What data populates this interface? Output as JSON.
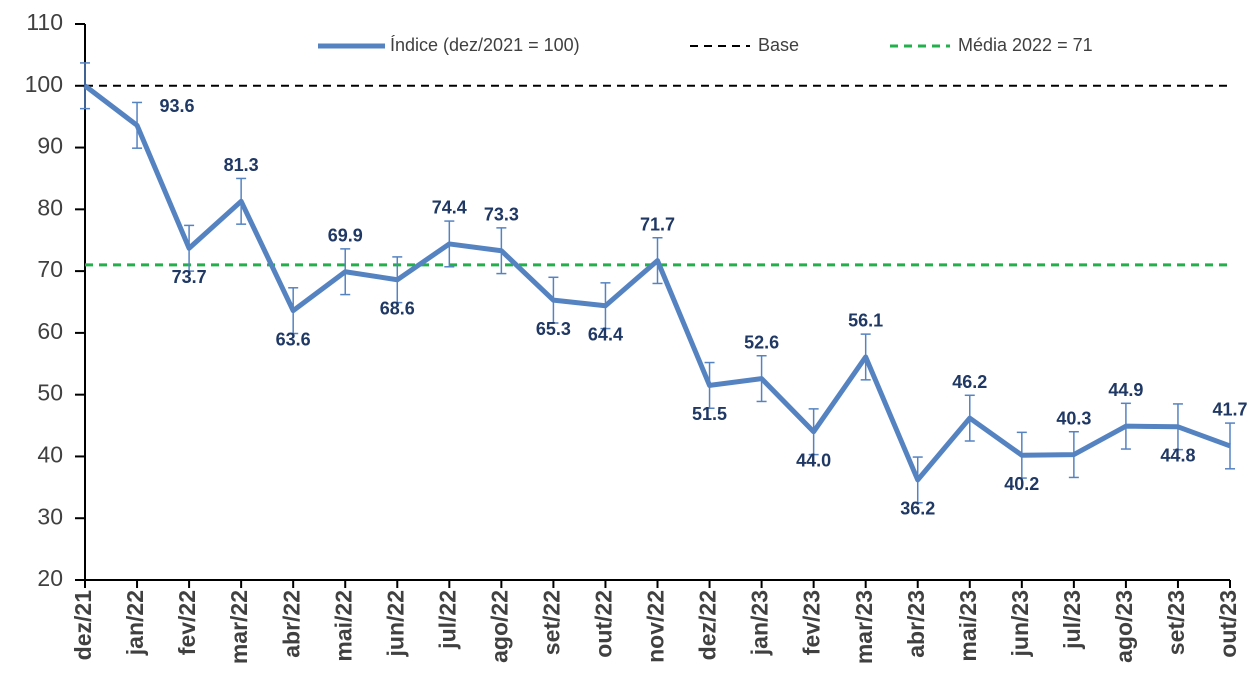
{
  "chart_data": {
    "type": "line",
    "categories": [
      "dez/21",
      "jan/22",
      "fev/22",
      "mar/22",
      "abr/22",
      "mai/22",
      "jun/22",
      "jul/22",
      "ago/22",
      "set/22",
      "out/22",
      "nov/22",
      "dez/22",
      "jan/23",
      "fev/23",
      "mar/23",
      "abr/23",
      "mai/23",
      "jun/23",
      "jul/23",
      "ago/23",
      "set/23",
      "out/23"
    ],
    "series": [
      {
        "name": "Índice (dez/2021 = 100)",
        "color": "#5583c2",
        "values": [
          100,
          93.6,
          73.7,
          81.3,
          63.6,
          69.9,
          68.6,
          74.4,
          73.3,
          65.3,
          64.4,
          71.7,
          51.5,
          52.6,
          44.0,
          56.1,
          36.2,
          46.2,
          40.2,
          40.3,
          44.9,
          44.8,
          41.7
        ],
        "value_labels": [
          null,
          "93.6",
          "73.7",
          "81.3",
          "63.6",
          "69.9",
          "68.6",
          "74.4",
          "73.3",
          "65.3",
          "64.4",
          "71.7",
          "51.5",
          "52.6",
          "44.0",
          "56.1",
          "36.2",
          "46.2",
          "40.2",
          "40.3",
          "44.9",
          "44.8",
          "41.7"
        ],
        "errors": [
          3.7,
          3.7,
          3.7,
          3.7,
          3.7,
          3.7,
          3.7,
          3.7,
          3.7,
          3.7,
          3.7,
          3.7,
          3.7,
          3.7,
          3.7,
          3.7,
          3.7,
          3.7,
          3.7,
          3.7,
          3.7,
          3.7,
          3.7
        ]
      }
    ],
    "hlines": [
      {
        "name": "Base",
        "value": 100,
        "color": "#000000"
      },
      {
        "name": "Média 2022 = 71",
        "value": 71,
        "color": "#22b04b"
      }
    ],
    "ylim": [
      20,
      110
    ],
    "yticks": [
      20,
      30,
      40,
      50,
      60,
      70,
      80,
      90,
      100,
      110
    ],
    "grid": false
  }
}
